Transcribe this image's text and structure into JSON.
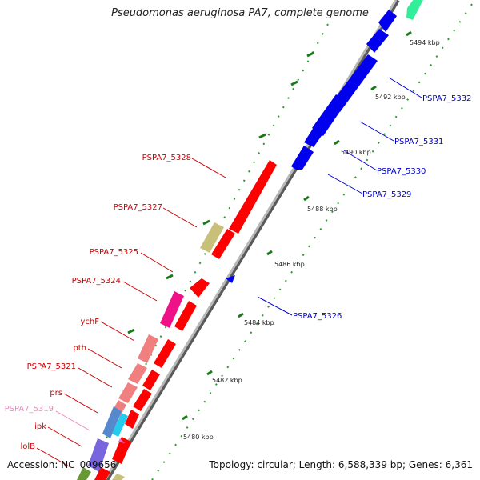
{
  "title": "Pseudomonas aeruginosa PA7, complete genome",
  "accession": "Accession: NC_009656",
  "summary": "Topology: circular; Length: 6,588,339 bp; Genes: 6,361",
  "colors": {
    "backbone": "#8c8c8c",
    "forward_gene": "#ff0000",
    "reverse_gene": "#0000ee",
    "tick": "#1a7a1a",
    "dots": "#2a9a2a"
  },
  "ticks": [
    "5480 kbp",
    "5482 kbp",
    "5484 kbp",
    "5486 kbp",
    "5488 kbp",
    "5490 kbp",
    "5492 kbp",
    "5494 kbp"
  ],
  "reverse_labels": [
    "PSPA7_5332",
    "PSPA7_5331",
    "PSPA7_5330",
    "PSPA7_5329",
    "PSPA7_5326"
  ],
  "forward_labels": [
    "PSPA7_5328",
    "PSPA7_5327",
    "PSPA7_5325",
    "PSPA7_5324",
    "ychF",
    "pth",
    "PSPA7_5321",
    "prs",
    "PSPA7_5319",
    "ipk",
    "lolB"
  ]
}
